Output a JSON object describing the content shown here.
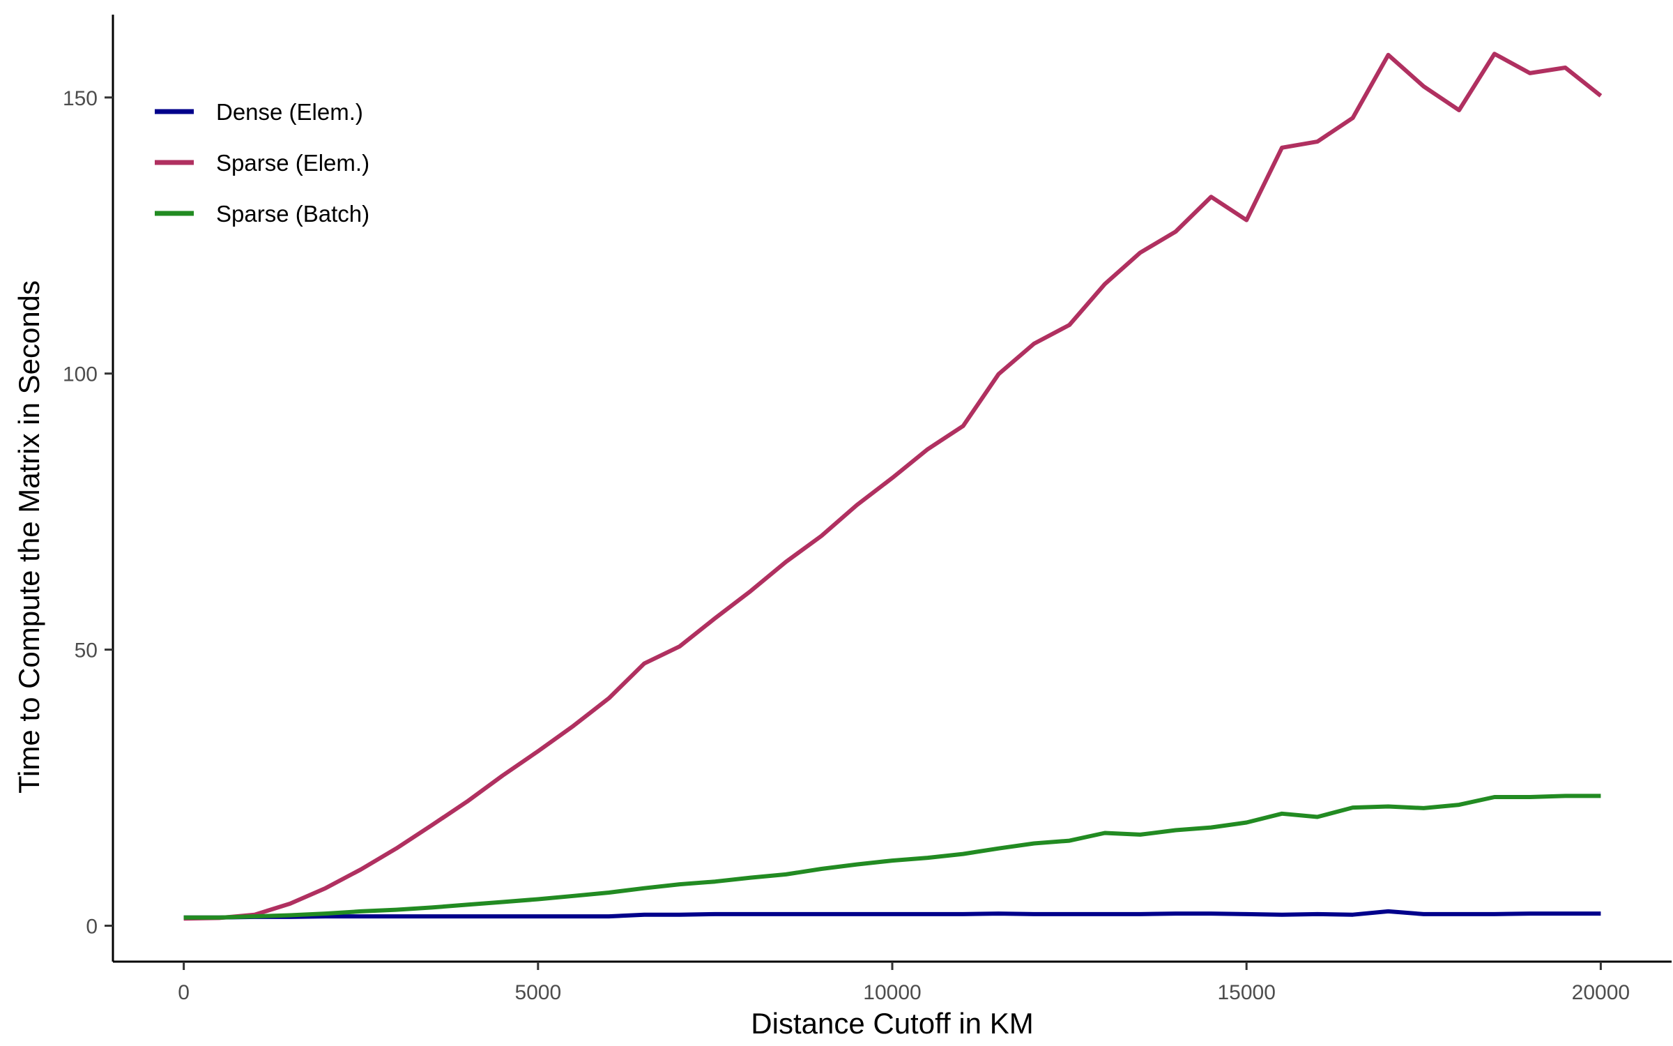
{
  "chart_data": {
    "type": "line",
    "title": "",
    "xlabel": "Distance Cutoff in KM",
    "ylabel": "Time to Compute the Matrix in Seconds",
    "xlim": [
      -1000,
      21000
    ],
    "ylim": [
      -6.5,
      165
    ],
    "xticks": [
      0,
      5000,
      10000,
      15000,
      20000
    ],
    "xtick_labels": [
      "0",
      "5000",
      "10000",
      "15000",
      "20000"
    ],
    "yticks": [
      0,
      50,
      100,
      150
    ],
    "ytick_labels": [
      "0",
      "50",
      "100",
      "150"
    ],
    "grid": false,
    "legend_position": "top-left",
    "x": [
      0,
      500,
      1000,
      1500,
      2000,
      2500,
      3000,
      3500,
      4000,
      4500,
      5000,
      5500,
      6000,
      6500,
      7000,
      7500,
      8000,
      8500,
      9000,
      9500,
      10000,
      10500,
      11000,
      11500,
      12000,
      12500,
      13000,
      13500,
      14000,
      14500,
      15000,
      15500,
      16000,
      16500,
      17000,
      17500,
      18000,
      18500,
      19000,
      19500,
      20000
    ],
    "series": [
      {
        "name": "Dense (Elem.)",
        "color": "#00008B",
        "values": [
          1.5,
          1.5,
          1.6,
          1.6,
          1.7,
          1.7,
          1.7,
          1.7,
          1.7,
          1.7,
          1.7,
          1.7,
          1.7,
          2.0,
          2.0,
          2.1,
          2.1,
          2.1,
          2.1,
          2.1,
          2.1,
          2.1,
          2.1,
          2.2,
          2.1,
          2.1,
          2.1,
          2.1,
          2.2,
          2.2,
          2.1,
          2.0,
          2.1,
          2.0,
          2.6,
          2.1,
          2.1,
          2.1,
          2.2,
          2.2,
          2.2
        ]
      },
      {
        "name": "Sparse (Elem.)",
        "color": "#B03060",
        "values": [
          1.3,
          1.4,
          2.0,
          4.0,
          6.8,
          10.2,
          14.0,
          18.2,
          22.5,
          27.2,
          31.6,
          36.2,
          41.2,
          47.5,
          50.6,
          55.7,
          60.6,
          65.9,
          70.6,
          76.2,
          81.1,
          86.3,
          90.5,
          99.9,
          105.4,
          108.8,
          116.2,
          121.9,
          125.7,
          132.0,
          127.8,
          140.9,
          142.0,
          146.3,
          157.7,
          152.0,
          147.7,
          157.9,
          154.4,
          155.4,
          150.3
        ]
      },
      {
        "name": "Sparse (Batch)",
        "color": "#228B22",
        "values": [
          1.5,
          1.5,
          1.7,
          1.9,
          2.2,
          2.6,
          2.9,
          3.3,
          3.8,
          4.3,
          4.8,
          5.4,
          6.0,
          6.8,
          7.5,
          8.0,
          8.7,
          9.3,
          10.3,
          11.1,
          11.8,
          12.3,
          13.0,
          14.0,
          14.9,
          15.4,
          16.8,
          16.5,
          17.3,
          17.8,
          18.7,
          20.3,
          19.7,
          21.4,
          21.6,
          21.3,
          21.9,
          23.3,
          23.3,
          23.5,
          23.5
        ]
      }
    ]
  }
}
